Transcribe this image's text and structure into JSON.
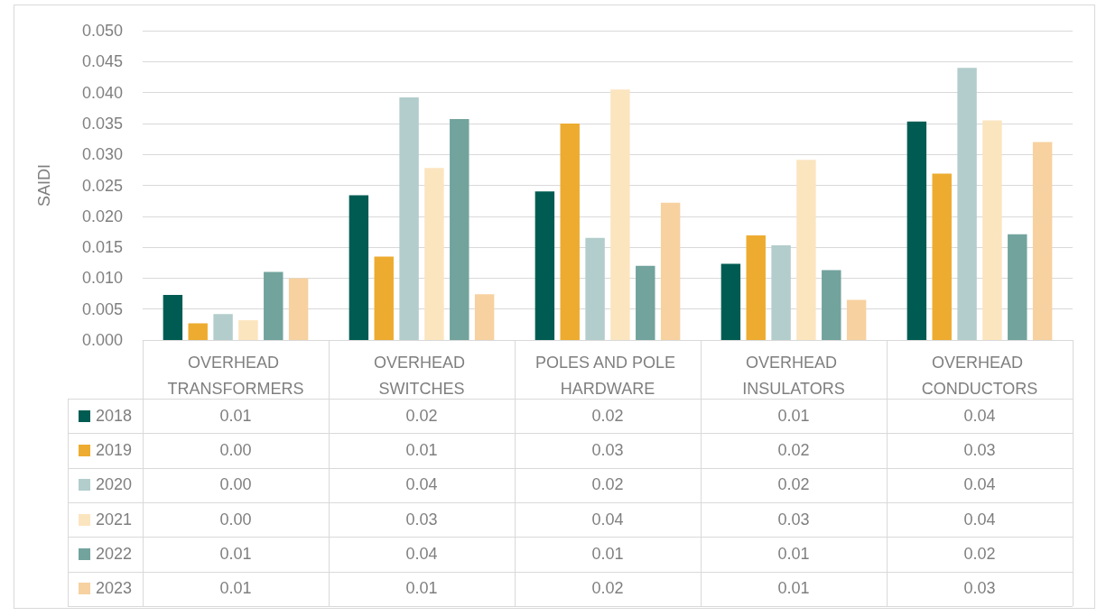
{
  "chart_data": {
    "type": "bar",
    "ylabel": "SAIDI",
    "categories": [
      "OVERHEAD TRANSFORMERS",
      "OVERHEAD SWITCHES",
      "POLES AND POLE HARDWARE",
      "OVERHEAD INSULATORS",
      "OVERHEAD CONDUCTORS"
    ],
    "series": [
      {
        "name": "2018",
        "color": "#005c53",
        "values": [
          0.0073,
          0.0234,
          0.024,
          0.0123,
          0.0353
        ],
        "value_labels": [
          "0.01",
          "0.02",
          "0.02",
          "0.01",
          "0.04"
        ]
      },
      {
        "name": "2019",
        "color": "#edac30",
        "values": [
          0.0027,
          0.0135,
          0.035,
          0.0169,
          0.0269
        ],
        "value_labels": [
          "0.00",
          "0.01",
          "0.03",
          "0.02",
          "0.03"
        ]
      },
      {
        "name": "2020",
        "color": "#b2cdcb",
        "values": [
          0.0042,
          0.0392,
          0.0165,
          0.0153,
          0.044
        ],
        "value_labels": [
          "0.00",
          "0.04",
          "0.02",
          "0.02",
          "0.04"
        ]
      },
      {
        "name": "2021",
        "color": "#fbe5bf",
        "values": [
          0.0032,
          0.0278,
          0.0405,
          0.0291,
          0.0355
        ],
        "value_labels": [
          "0.00",
          "0.03",
          "0.04",
          "0.03",
          "0.04"
        ]
      },
      {
        "name": "2022",
        "color": "#72a39d",
        "values": [
          0.011,
          0.0357,
          0.012,
          0.0113,
          0.0171
        ],
        "value_labels": [
          "0.01",
          "0.04",
          "0.01",
          "0.01",
          "0.02"
        ]
      },
      {
        "name": "2023",
        "color": "#f7d1a0",
        "values": [
          0.01,
          0.0074,
          0.0222,
          0.0065,
          0.032
        ],
        "value_labels": [
          "0.01",
          "0.01",
          "0.02",
          "0.01",
          "0.03"
        ]
      }
    ],
    "ylim": [
      0,
      0.05
    ],
    "yticks": [
      {
        "value": 0,
        "label": "0.000"
      },
      {
        "value": 0.005,
        "label": "0.005"
      },
      {
        "value": 0.01,
        "label": "0.010"
      },
      {
        "value": 0.015,
        "label": "0.015"
      },
      {
        "value": 0.02,
        "label": "0.020"
      },
      {
        "value": 0.025,
        "label": "0.025"
      },
      {
        "value": 0.03,
        "label": "0.030"
      },
      {
        "value": 0.035,
        "label": "0.035"
      },
      {
        "value": 0.04,
        "label": "0.040"
      },
      {
        "value": 0.045,
        "label": "0.045"
      },
      {
        "value": 0.05,
        "label": "0.050"
      }
    ],
    "grid": "y",
    "legend": "bottom"
  }
}
